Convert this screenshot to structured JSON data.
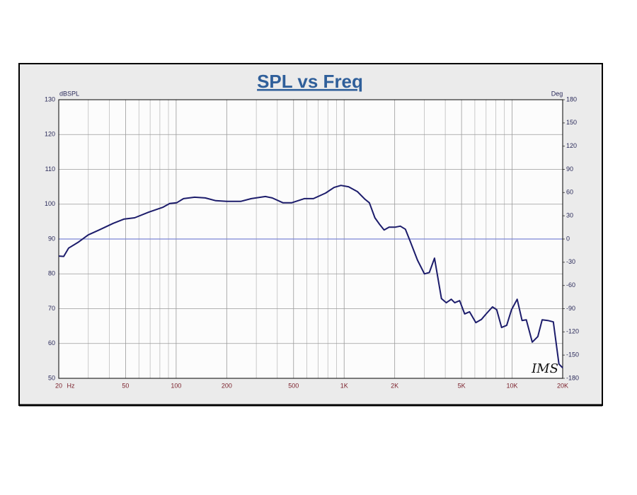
{
  "chart_data": {
    "type": "line",
    "title": "SPL vs Freq",
    "y_axis_label": "dBSPL",
    "y2_axis_label": "Deg",
    "x_axis_label": "Hz",
    "annotation": "IMS",
    "x_log_scale": true,
    "grid": true,
    "color": "#1c1c6b",
    "y2_zero_line_color": "#7b86d6",
    "x": [
      20,
      21.4,
      22.9,
      26,
      30,
      34.8,
      42.2,
      48.8,
      56.6,
      68.6,
      83.2,
      91.6,
      100.6,
      110.6,
      128.8,
      149,
      172,
      200,
      242,
      280,
      340,
      373,
      433,
      486,
      579,
      656,
      776,
      871,
      957,
      1063,
      1200,
      1332,
      1413,
      1524,
      1632,
      1730,
      1852,
      2005,
      2160,
      2316,
      2480,
      2735,
      3007,
      3216,
      3450,
      3795,
      4060,
      4343,
      4553,
      4870,
      5216,
      5580,
      6080,
      6560,
      7010,
      7640,
      8100,
      8660,
      9280,
      9920,
      10720,
      11460,
      12150,
      13180,
      14230,
      15100,
      16300,
      17600,
      19000,
      20000
    ],
    "values": [
      85.1,
      85,
      87.4,
      89,
      91.2,
      92.6,
      94.5,
      95.7,
      96.1,
      97.7,
      99.1,
      100.2,
      100.4,
      101.6,
      102,
      101.8,
      101,
      100.8,
      100.8,
      101.6,
      102.2,
      101.8,
      100.4,
      100.4,
      101.6,
      101.6,
      103.2,
      104.8,
      105.4,
      105,
      103.6,
      101.4,
      100.4,
      96.1,
      94.1,
      92.6,
      93.4,
      93.4,
      93.7,
      92.8,
      89.2,
      83.9,
      80,
      80.4,
      84.5,
      72.9,
      71.7,
      72.7,
      71.7,
      72.3,
      68.5,
      69.1,
      66,
      66.9,
      68.5,
      70.5,
      69.7,
      64.6,
      65.2,
      69.7,
      72.7,
      66.6,
      66.8,
      60.4,
      62,
      66.8,
      66.6,
      66.2,
      54.1,
      53
    ],
    "xlim": [
      20,
      20000
    ],
    "xticks": [
      20,
      50,
      100,
      200,
      500,
      {
        "value": 1000,
        "label": "1K"
      },
      {
        "value": 2000,
        "label": "2K"
      },
      {
        "value": 5000,
        "label": "5K"
      },
      {
        "value": 10000,
        "label": "10K"
      },
      {
        "value": 20000,
        "label": "20K"
      }
    ],
    "x_minor_ticks": [
      30,
      40,
      60,
      70,
      80,
      90,
      300,
      400,
      600,
      700,
      800,
      900,
      3000,
      4000,
      6000,
      7000,
      8000,
      9000
    ],
    "ylim": [
      50,
      130
    ],
    "yticks": [
      50,
      60,
      70,
      80,
      90,
      100,
      110,
      120,
      130
    ],
    "y2lim": [
      -180,
      180
    ],
    "y2ticks": [
      180,
      150,
      120,
      90,
      60,
      30,
      0,
      -30,
      -60,
      -90,
      -120,
      -150,
      -180
    ]
  }
}
